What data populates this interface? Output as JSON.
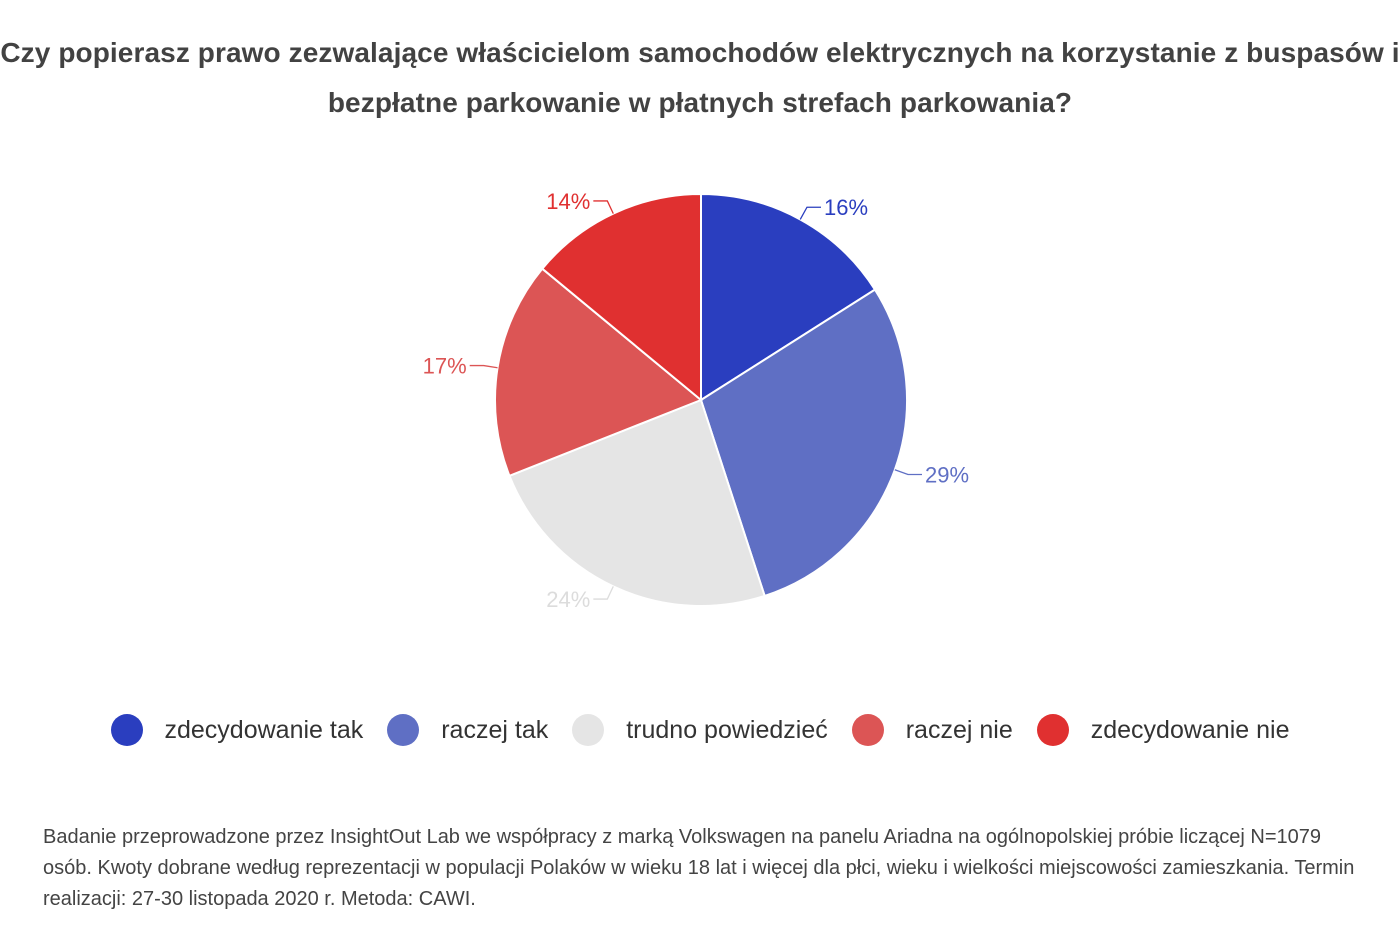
{
  "title": "Czy popierasz prawo zezwalające właścicielom samochodów elektrycznych na korzystanie z buspasów i bezpłatne parkowanie w płatnych strefach parkowania?",
  "chart_data": {
    "type": "pie",
    "title": "Czy popierasz prawo zezwalające właścicielom samochodów elektrycznych na korzystanie z buspasów i bezpłatne parkowanie w płatnych strefach parkowania?",
    "start_angle_deg": 0,
    "direction": "clockwise",
    "legend_position": "bottom",
    "slices": [
      {
        "name": "zdecydowanie tak",
        "value": 16,
        "label": "16%",
        "color": "#2a3ebf"
      },
      {
        "name": "raczej tak",
        "value": 29,
        "label": "29%",
        "color": "#5f6fc4"
      },
      {
        "name": "trudno powiedzieć",
        "value": 24,
        "label": "24%",
        "color": "#e5e5e5"
      },
      {
        "name": "raczej nie",
        "value": 17,
        "label": "17%",
        "color": "#dc5555"
      },
      {
        "name": "zdecydowanie nie",
        "value": 14,
        "label": "14%",
        "color": "#e03030"
      }
    ]
  },
  "footnote": "Badanie przeprowadzone przez InsightOut Lab we współpracy z marką Volkswagen na panelu Ariadna na ogólnopolskiej próbie liczącej N=1079 osób. Kwoty dobrane według reprezentacji w populacji Polaków w wieku 18 lat i więcej dla płci, wieku i wielkości miejscowości zamieszkania. Termin realizacji: 27-30 listopada 2020 r. Metoda: CAWI."
}
